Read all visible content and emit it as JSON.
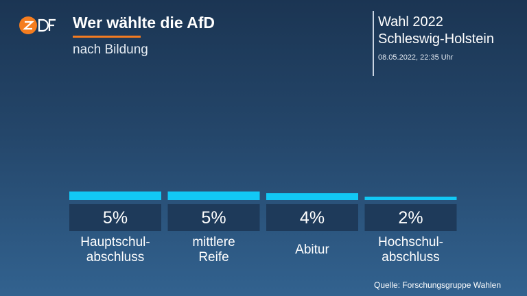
{
  "header": {
    "title": "Wer wählte die AfD",
    "subtitle": "nach Bildung"
  },
  "election": {
    "name": "Wahl 2022",
    "region": "Schleswig-Holstein",
    "timestamp": "08.05.2022, 22:35 Uhr"
  },
  "logo": {
    "text": "ZDF",
    "icon": "zdf-logo"
  },
  "source": "Quelle: Forschungsgruppe Wahlen",
  "colors": {
    "bar": "#12c8f5",
    "value_box": "#1e3a5a",
    "accent": "#f47b20",
    "logo": "#f57d1f"
  },
  "chart_data": {
    "type": "bar",
    "title": "Wer wählte die AfD",
    "subtitle": "nach Bildung",
    "categories": [
      "Hauptschulabschluss",
      "mittlere Reife",
      "Abitur",
      "Hochschulabschluss"
    ],
    "category_labels": [
      [
        "Hauptschul-",
        "abschluss"
      ],
      [
        "mittlere",
        "Reife"
      ],
      [
        "Abitur"
      ],
      [
        "Hochschul-",
        "abschluss"
      ]
    ],
    "values": [
      5,
      5,
      4,
      2
    ],
    "value_labels": [
      "5%",
      "5%",
      "4%",
      "2%"
    ],
    "unit": "%",
    "ylim": [
      0,
      100
    ],
    "grid": false,
    "legend": "none"
  }
}
